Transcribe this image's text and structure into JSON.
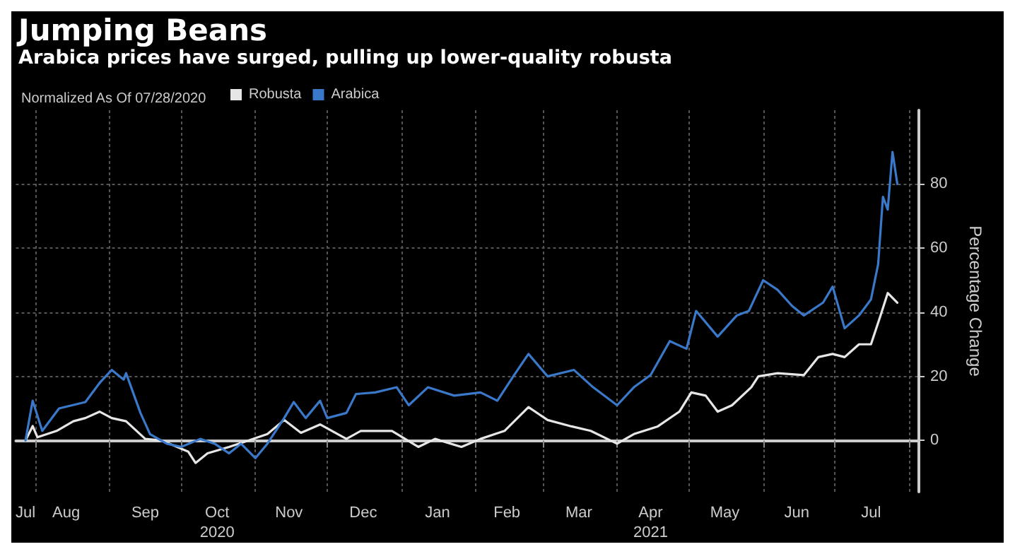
{
  "chart_data": {
    "type": "line",
    "title": "Jumping Beans",
    "subtitle": "Arabica prices have surged, pulling up lower-quality robusta",
    "legend_title": "Normalized As Of 07/28/2020",
    "ylabel": "Percentage Change",
    "xlim": [
      "2020-07-24",
      "2021-08-05"
    ],
    "xticks": [
      {
        "value": "2020-07-28",
        "label": "Jul"
      },
      {
        "value": "2020-08-01",
        "label": null
      },
      {
        "value": "2020-08-14",
        "label": "Aug"
      },
      {
        "value": "2020-09-01",
        "label": null
      },
      {
        "value": "2020-09-16",
        "label": "Sep"
      },
      {
        "value": "2020-10-01",
        "label": null
      },
      {
        "value": "2020-10-16",
        "label": "Oct\n2020"
      },
      {
        "value": "2020-11-01",
        "label": null
      },
      {
        "value": "2020-11-15",
        "label": "Nov"
      },
      {
        "value": "2020-12-01",
        "label": null
      },
      {
        "value": "2020-12-16",
        "label": "Dec"
      },
      {
        "value": "2021-01-01",
        "label": null
      },
      {
        "value": "2021-01-16",
        "label": "Jan"
      },
      {
        "value": "2021-02-01",
        "label": null
      },
      {
        "value": "2021-02-14",
        "label": "Feb"
      },
      {
        "value": "2021-03-01",
        "label": null
      },
      {
        "value": "2021-03-16",
        "label": "Mar"
      },
      {
        "value": "2021-04-01",
        "label": null
      },
      {
        "value": "2021-04-15",
        "label": "Apr\n2021"
      },
      {
        "value": "2021-05-01",
        "label": null
      },
      {
        "value": "2021-05-16",
        "label": "May"
      },
      {
        "value": "2021-06-01",
        "label": null
      },
      {
        "value": "2021-06-15",
        "label": "Jun"
      },
      {
        "value": "2021-07-01",
        "label": null
      },
      {
        "value": "2021-07-16",
        "label": "Jul"
      },
      {
        "value": "2021-08-01",
        "label": null
      }
    ],
    "ylim": [
      -16,
      103
    ],
    "yticks": [
      0,
      20,
      40,
      60,
      80
    ],
    "grid": true,
    "legend": "top left",
    "marker": "none",
    "line_style": "solid",
    "series": [
      {
        "name": "Robusta",
        "color": "#e6e6e6",
        "x": [
          "2020-07-28",
          "2020-07-31",
          "2020-08-02",
          "2020-08-10",
          "2020-08-17",
          "2020-08-22",
          "2020-08-28",
          "2020-09-02",
          "2020-09-08",
          "2020-09-16",
          "2020-09-23",
          "2020-10-04",
          "2020-10-07",
          "2020-10-12",
          "2020-10-21",
          "2020-10-29",
          "2020-11-06",
          "2020-11-13",
          "2020-11-20",
          "2020-11-28",
          "2020-12-09",
          "2020-12-15",
          "2020-12-28",
          "2021-01-08",
          "2021-01-15",
          "2021-01-26",
          "2021-02-03",
          "2021-02-09",
          "2021-02-13",
          "2021-02-23",
          "2021-03-03",
          "2021-03-13",
          "2021-03-21",
          "2021-04-01",
          "2021-04-08",
          "2021-04-18",
          "2021-04-27",
          "2021-05-02",
          "2021-05-08",
          "2021-05-13",
          "2021-05-19",
          "2021-05-27",
          "2021-05-30",
          "2021-06-07",
          "2021-06-18",
          "2021-06-24",
          "2021-06-30",
          "2021-07-05",
          "2021-07-11",
          "2021-07-16",
          "2021-07-20",
          "2021-07-23",
          "2021-07-27"
        ],
        "values": [
          0,
          4.5,
          1,
          3,
          6,
          7,
          9,
          7,
          6,
          0.5,
          0,
          -3.5,
          -7,
          -4,
          -2,
          0,
          2,
          6.4,
          2.4,
          5,
          0.5,
          3,
          3,
          -2,
          0.5,
          -2,
          0.5,
          2,
          3,
          10.4,
          6.4,
          4.4,
          3,
          -1,
          2,
          4.4,
          9,
          15,
          14,
          9,
          11,
          16.6,
          20,
          21,
          20.4,
          26,
          27,
          26,
          30,
          30,
          39,
          46,
          43
        ]
      },
      {
        "name": "Arabica",
        "color": "#3a78c9",
        "x": [
          "2020-07-28",
          "2020-07-31",
          "2020-08-04",
          "2020-08-11",
          "2020-08-22",
          "2020-08-28",
          "2020-09-02",
          "2020-09-07",
          "2020-09-08",
          "2020-09-14",
          "2020-09-18",
          "2020-09-25",
          "2020-10-01",
          "2020-10-09",
          "2020-10-15",
          "2020-10-21",
          "2020-10-26",
          "2020-11-01",
          "2020-11-06",
          "2020-11-13",
          "2020-11-17",
          "2020-11-22",
          "2020-11-28",
          "2020-12-01",
          "2020-12-09",
          "2020-12-13",
          "2020-12-21",
          "2020-12-30",
          "2021-01-04",
          "2021-01-12",
          "2021-01-23",
          "2021-02-03",
          "2021-02-10",
          "2021-02-17",
          "2021-02-23",
          "2021-03-03",
          "2021-03-14",
          "2021-03-22",
          "2021-04-01",
          "2021-04-08",
          "2021-04-15",
          "2021-04-23",
          "2021-04-30",
          "2021-05-04",
          "2021-05-13",
          "2021-05-21",
          "2021-05-26",
          "2021-06-01",
          "2021-06-07",
          "2021-06-13",
          "2021-06-18",
          "2021-06-26",
          "2021-06-30",
          "2021-07-05",
          "2021-07-11",
          "2021-07-16",
          "2021-07-19",
          "2021-07-21",
          "2021-07-23",
          "2021-07-25",
          "2021-07-27"
        ],
        "values": [
          0,
          12.4,
          3,
          10,
          12,
          18,
          22,
          19,
          21,
          8.6,
          2,
          -1,
          -2,
          0.5,
          -1,
          -4,
          -1,
          -5.5,
          -1,
          7,
          12,
          7,
          12.4,
          7,
          8.6,
          14.5,
          15,
          16.6,
          11,
          16.6,
          14,
          15,
          12.4,
          20.4,
          27,
          20,
          22,
          16.6,
          11,
          16.6,
          20.4,
          31,
          28.6,
          40.4,
          32.4,
          39,
          40.4,
          50,
          47,
          42,
          39,
          43,
          48,
          35,
          39,
          44,
          55,
          76,
          72,
          90,
          80
        ]
      }
    ]
  }
}
